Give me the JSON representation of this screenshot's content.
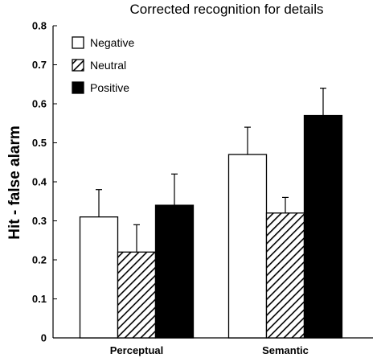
{
  "chart_data": {
    "type": "bar",
    "title": "Corrected recognition for details",
    "xlabel": "",
    "ylabel": "Hit  - false alarm",
    "categories": [
      "Perceptual",
      "Semantic"
    ],
    "ylim": [
      0,
      0.8
    ],
    "yticks": [
      "0",
      "0.1",
      "0.2",
      "0.3",
      "0.4",
      "0.5",
      "0.6",
      "0.7",
      "0.8"
    ],
    "legend_position": "top-left",
    "series": [
      {
        "name": "Negative",
        "fill": "white",
        "values": [
          0.31,
          0.47
        ],
        "error": [
          0.07,
          0.07
        ]
      },
      {
        "name": "Neutral",
        "fill": "hatched",
        "values": [
          0.22,
          0.32
        ],
        "error": [
          0.07,
          0.04
        ]
      },
      {
        "name": "Positive",
        "fill": "black",
        "values": [
          0.34,
          0.57
        ],
        "error": [
          0.08,
          0.07
        ]
      }
    ]
  }
}
